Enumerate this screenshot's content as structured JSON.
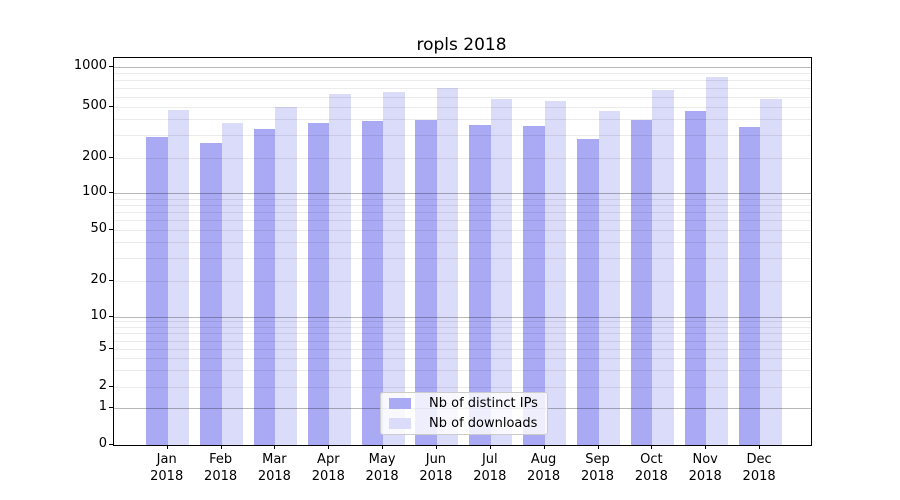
{
  "chart_data": {
    "type": "bar",
    "title": "ropls 2018",
    "categories": [
      "Jan 2018",
      "Feb 2018",
      "Mar 2018",
      "Apr 2018",
      "May 2018",
      "Jun 2018",
      "Jul 2018",
      "Aug 2018",
      "Sep 2018",
      "Oct 2018",
      "Nov 2018",
      "Dec 2018"
    ],
    "series": [
      {
        "name": "Nb of distinct IPs",
        "color": "#a9a9f4",
        "values": [
          292,
          260,
          335,
          377,
          387,
          393,
          363,
          357,
          283,
          396,
          466,
          348
        ]
      },
      {
        "name": "Nb of downloads",
        "color": "#dbdbfa",
        "values": [
          475,
          375,
          496,
          628,
          647,
          697,
          575,
          554,
          466,
          676,
          839,
          572
        ]
      }
    ],
    "yscale": "log",
    "yticks": [
      0,
      1,
      2,
      5,
      10,
      20,
      50,
      100,
      200,
      500,
      1000
    ],
    "ylim": [
      0,
      1000
    ],
    "xlabel": "",
    "ylabel": "",
    "grid": true,
    "legend_position": "lower center",
    "colors": {
      "spine": "#000000",
      "grid_minor": "#ebebeb",
      "grid_major": "#b8b8b8",
      "legend_border": "#cccccc",
      "legend_background": "rgba(255,255,255,0.8)",
      "text": "#000000"
    }
  }
}
